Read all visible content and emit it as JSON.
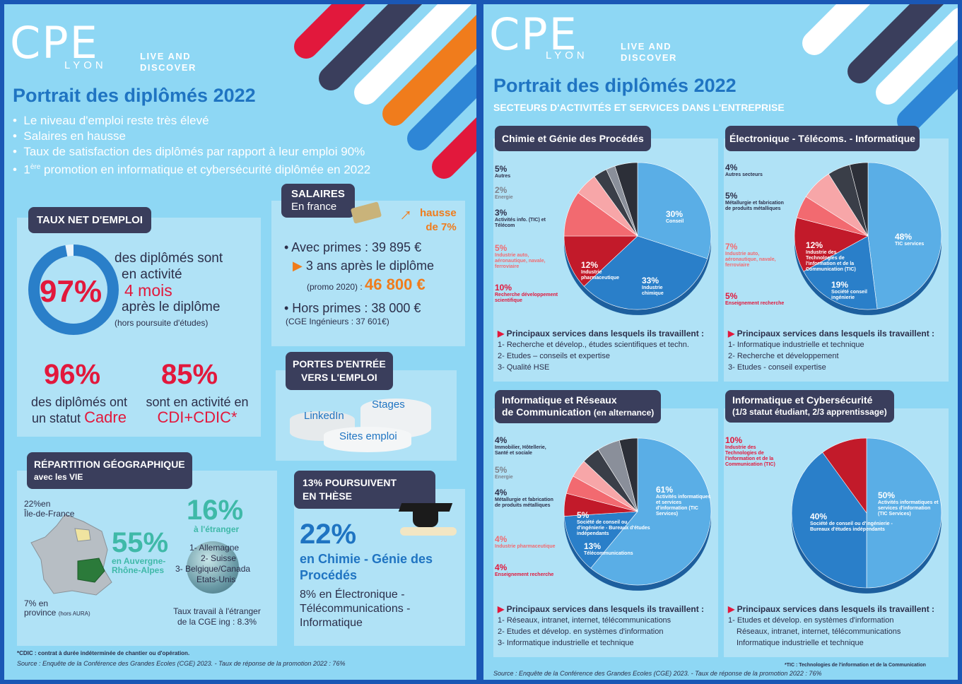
{
  "colors": {
    "accent_blue": "#1f74c2",
    "red": "#e2183c",
    "orange": "#f07c1c",
    "navy": "#3a3e5c",
    "green": "#3fb9a8",
    "background": "#8ed7f4"
  },
  "brand": {
    "logo": "CPE",
    "logo_sub": "LYON",
    "tagline_1": "LIVE AND",
    "tagline_2": "DISCOVER"
  },
  "left": {
    "title": "Portrait des diplômés 2022",
    "bullets": [
      "Le niveau d'emploi reste très élevé",
      "Salaires en hausse",
      "Taux de satisfaction des diplômés par rapport à leur emploi 90%"
    ],
    "bullet4_pre": "1",
    "bullet4_sup": "ère",
    "bullet4_post": " promotion en informatique et cybersécurité diplômée en 2022",
    "emploi": {
      "header": "TAUX NET D'EMPLOI",
      "pct": "97%",
      "ring_fraction": 0.97,
      "l1": "des diplômés sont",
      "l2": "en activité",
      "l3": "4 mois",
      "l4": "après le diplôme",
      "l5": "(hors poursuite d'études)",
      "cadre_pct": "96%",
      "cadre_l1": "des diplômés ont",
      "cadre_l2": "un statut",
      "cadre_l3": "Cadre",
      "cdi_pct": "85%",
      "cdi_l1": "sont en activité en",
      "cdi_l2": "CDI+CDIC*"
    },
    "salaires": {
      "header": "SALAIRES",
      "sub": "En france",
      "hausse_1": "hausse",
      "hausse_2": "de 7%",
      "avec_primes": "• Avec primes : 39 895 €",
      "ans_pre": "3 ans après le diplôme",
      "promo": "(promo 2020) : ",
      "promo_value": "46 800 €",
      "hors_primes": "• Hors primes : 38 000 €",
      "cge": "(CGE Ingénieurs : 37 601€)"
    },
    "portes": {
      "header_1": "PORTES D'ENTRÉE",
      "header_2": "VERS L'EMPLOI",
      "linkedin": "LinkedIn",
      "stages": "Stages",
      "sites": "Sites emploi"
    },
    "geo": {
      "header": "RÉPARTITION GÉOGRAPHIQUE",
      "sub": "avec les VIE",
      "idf_pct": "22%",
      "idf_label_1": "en",
      "idf_label_2": "Île-de-France",
      "aura_pct": "55%",
      "aura_l1": "en Auvergne-",
      "aura_l2": "Rhône-Alpes",
      "prov_pct": "7%",
      "prov_l1": "en",
      "prov_l2": "province",
      "prov_l3": "(hors AURA)",
      "etr_pct": "16%",
      "etr_label": "à l'étranger",
      "countries": [
        "1- Allemagne",
        "2- Suisse",
        "3- Belgique/Canada",
        "Etats-Unis"
      ],
      "taux_1": "Taux travail à l'étranger",
      "taux_2": "de la CGE ing : 8.3%"
    },
    "these": {
      "header_1": "13% POURSUIVENT",
      "header_2": "EN THÈSE",
      "pct": "22%",
      "l1": "en Chimie - Génie des",
      "l2": "Procédés",
      "l3": "8% en Électronique -",
      "l4": "Télécommunications -",
      "l5": "Informatique"
    },
    "footnote": "*CDIC : contrat à durée indéterminée de chantier ou d'opération.",
    "source": "Source :  Enquête de la Conférence des Grandes Ecoles (CGE) 2023.  -  Taux de réponse de la promotion 2022 : 76%"
  },
  "right": {
    "title": "Portrait des diplômés 2022",
    "subtitle": "SECTEURS D'ACTIVITÉS ET SERVICES DANS L'ENTREPRISE",
    "services_title": "Principaux services dans lesquels ils travaillent :",
    "chimie": {
      "header": "Chimie et Génie des Procédés",
      "outer_labels": [
        {
          "pct": "5%",
          "name": "Autres"
        },
        {
          "pct": "2%",
          "name": "Energie"
        },
        {
          "pct": "3%",
          "name": "Activités info. (TIC) et Télécom"
        },
        {
          "pct": "5%",
          "name": "Industrie auto, aéronautique, navale, ferroviaire"
        },
        {
          "pct": "10%",
          "name": "Recherche développement scientifique"
        }
      ],
      "in_labels": [
        {
          "pct": "30%",
          "name": "Conseil"
        },
        {
          "pct": "33%",
          "name": "Industrie chimique"
        },
        {
          "pct": "12%",
          "name": "Industrie pharmaceutique"
        }
      ],
      "chart_data": {
        "type": "pie",
        "values": [
          30,
          33,
          12,
          10,
          5,
          3,
          2,
          5
        ],
        "labels": [
          "Conseil",
          "Industrie chimique",
          "Industrie pharmaceutique",
          "Recherche développement scientifique",
          "Industrie auto, aéronautique, navale, ferroviaire",
          "Activités info. (TIC) et Télécom",
          "Energie",
          "Autres"
        ],
        "colors": [
          "#5aaee6",
          "#2a7fc9",
          "#c21a2a",
          "#f26a70",
          "#f7a6a8",
          "#3a3e48",
          "#8a8f9a",
          "#2c2f38"
        ]
      },
      "services": [
        "1- Recherche et dévelop., études scientifiques et techn.",
        "2- Etudes – conseils et expertise",
        "3- Qualité HSE"
      ]
    },
    "elec": {
      "header": "Électronique - Télécoms. - Informatique",
      "outer_labels": [
        {
          "pct": "4%",
          "name": "Autres secteurs"
        },
        {
          "pct": "5%",
          "name": "Métallurgie et fabrication de produits métalliques"
        },
        {
          "pct": "7%",
          "name": "Industrie auto, aéronautique, navale, ferroviaire"
        },
        {
          "pct": "5%",
          "name": "Enseignement recherche"
        }
      ],
      "in_labels": [
        {
          "pct": "48%",
          "name": "TIC services"
        },
        {
          "pct": "19%",
          "name": "Société conseil ingénierie"
        },
        {
          "pct": "12%",
          "name": "Industrie des Technologies de l'information et de la Communication (TIC)"
        }
      ],
      "chart_data": {
        "type": "pie",
        "values": [
          48,
          19,
          12,
          5,
          7,
          5,
          4
        ],
        "labels": [
          "TIC services",
          "Société conseil ingénierie",
          "Industrie des Technologies de l'information et de la Communication (TIC)",
          "Enseignement recherche",
          "Industrie auto, aéronautique, navale, ferroviaire",
          "Métallurgie et fabrication de produits métalliques",
          "Autres secteurs"
        ],
        "colors": [
          "#5aaee6",
          "#2a7fc9",
          "#c21a2a",
          "#f26a70",
          "#f7a6a8",
          "#3a3e48",
          "#2c2f38"
        ]
      },
      "services": [
        "1- Informatique industrielle et technique",
        "2- Recherche et développement",
        "3- Etudes - conseil expertise"
      ]
    },
    "irc": {
      "header_1": "Informatique et Réseaux",
      "header_2": "de Communication",
      "header_note": "(en alternance)",
      "outer_labels": [
        {
          "pct": "4%",
          "name": "Immobilier, Hôtellerie, Santé et sociale"
        },
        {
          "pct": "5%",
          "name": "Energie"
        },
        {
          "pct": "4%",
          "name": "Métallurgie et fabrication de produits métalliques"
        },
        {
          "pct": "4%",
          "name": "Industrie pharmaceutique"
        },
        {
          "pct": "4%",
          "name": "Enseignement recherche"
        }
      ],
      "in_labels": [
        {
          "pct": "61%",
          "name": "Activités informatiques et services d'information (TIC Services)"
        },
        {
          "pct": "13%",
          "name": "Télécommunications"
        },
        {
          "pct": "5%",
          "name": "Société de conseil ou d'ingénierie - Bureaux d'études indépendants"
        }
      ],
      "chart_data": {
        "type": "pie",
        "values": [
          61,
          13,
          5,
          4,
          4,
          4,
          5,
          4
        ],
        "labels": [
          "Activités informatiques et services d'information (TIC Services)",
          "Télécommunications",
          "Société de conseil ou d'ingénierie - Bureaux d'études indépendants",
          "Enseignement recherche",
          "Industrie pharmaceutique",
          "Métallurgie et fabrication de produits métalliques",
          "Energie",
          "Immobilier, Hôtellerie, Santé et sociale"
        ],
        "colors": [
          "#5aaee6",
          "#2a7fc9",
          "#c21a2a",
          "#f26a70",
          "#f7a6a8",
          "#3a3e48",
          "#8a8f9a",
          "#2c2f38"
        ]
      },
      "services": [
        "1- Réseaux, intranet, internet, télécommunications",
        "2- Etudes et dévelop. en systèmes d'information",
        "3- Informatique industrielle et technique"
      ]
    },
    "cyber": {
      "header_1": "Informatique et Cybersécurité",
      "header_2": "(1/3 statut étudiant, 2/3 apprentissage)",
      "outer_labels": [
        {
          "pct": "10%",
          "name": "Industrie des Technologies de l'information et de la Communication (TIC)"
        }
      ],
      "in_labels": [
        {
          "pct": "50%",
          "name": "Activités informatiques et services d'information (TIC Services)"
        },
        {
          "pct": "40%",
          "name": "Société de conseil ou d'ingénierie - Bureaux d'études indépendants"
        }
      ],
      "chart_data": {
        "type": "pie",
        "values": [
          50,
          40,
          10
        ],
        "labels": [
          "Activités informatiques et services d'information (TIC Services)",
          "Société de conseil ou d'ingénierie - Bureaux d'études indépendants",
          "Industrie des Technologies de l'information et de la Communication (TIC)"
        ],
        "colors": [
          "#5aaee6",
          "#2a7fc9",
          "#c21a2a"
        ]
      },
      "services": [
        "1- Etudes et dévelop. en systèmes d'information",
        "Réseaux, intranet, internet, télécommunications",
        "Informatique industrielle et technique"
      ]
    },
    "tic_note": "*TIC : Technologies de l'information et de la Communication",
    "source": "Source : Enquête de la Conférence des Grandes Ecoles (CGE) 2023. - Taux de réponse de la promotion 2022 : 76%"
  }
}
